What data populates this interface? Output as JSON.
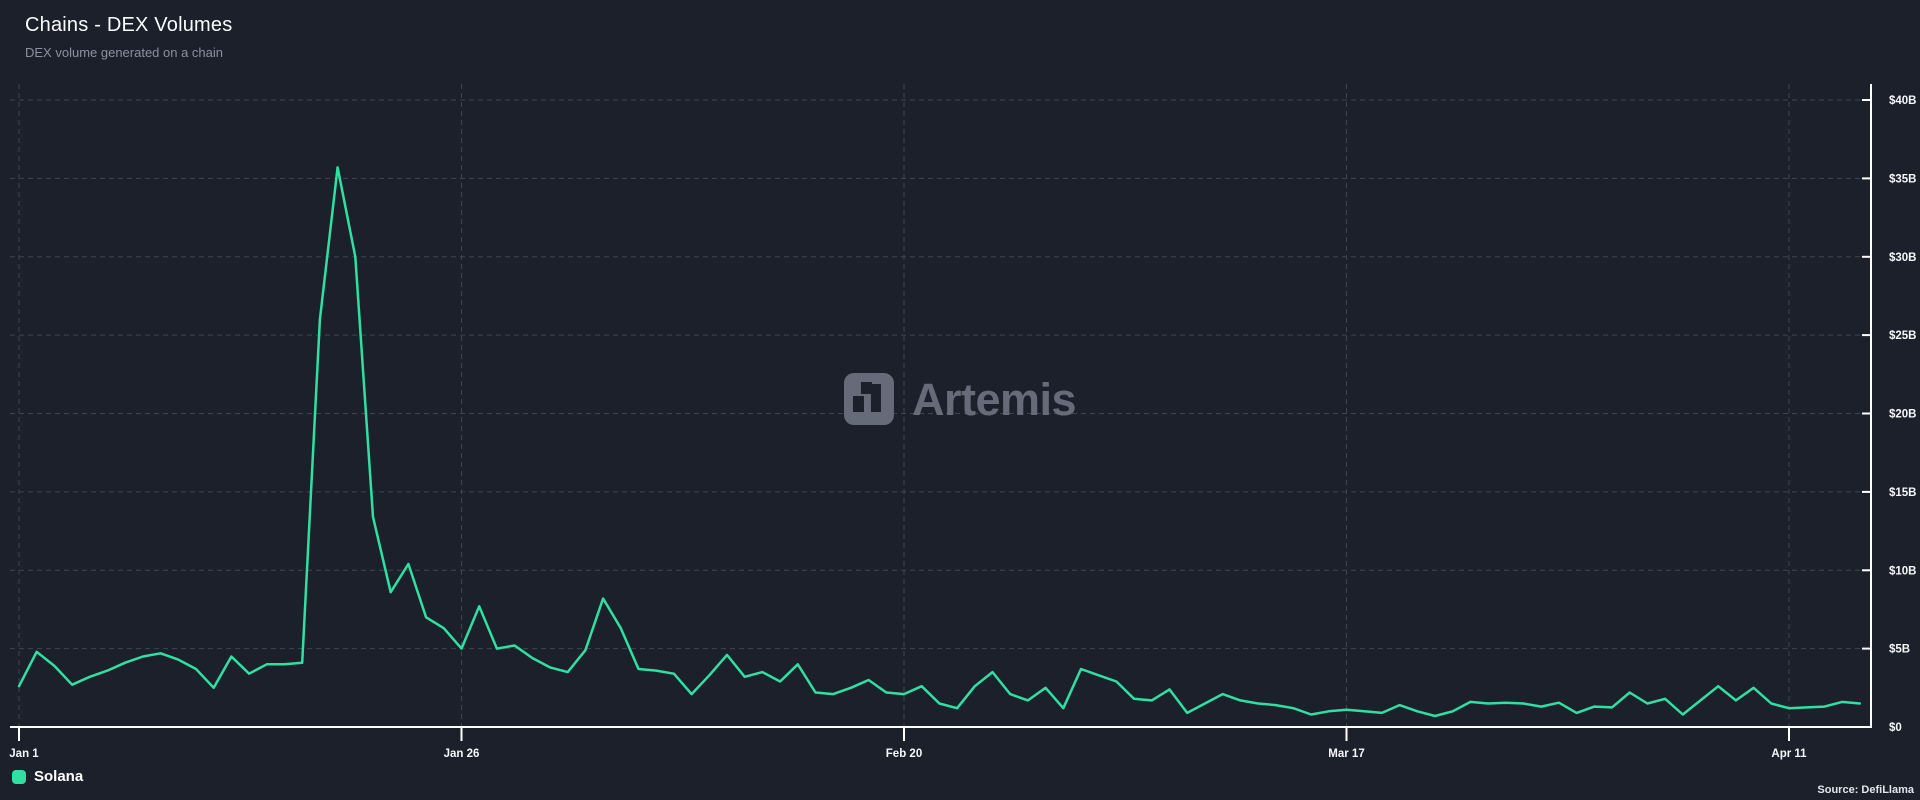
{
  "header": {
    "title": "Chains - DEX Volumes",
    "subtitle": "DEX volume generated on a chain"
  },
  "watermark": {
    "text": "Artemis"
  },
  "legend": [
    {
      "label": "Solana",
      "color": "#2fe0a2"
    }
  ],
  "source": "Source: DefiLlama",
  "colors": {
    "background": "#1c202b",
    "series_green": "#2fe0a2",
    "gridline": "#3e4450",
    "axis": "#ffffff",
    "subtitle_gray": "#8b91a0",
    "watermark_gray": "#6a707e"
  },
  "chart_data": {
    "type": "line",
    "title": "Chains - DEX Volumes",
    "subtitle": "DEX volume generated on a chain",
    "ylabel": "",
    "xlabel": "",
    "unit": "USD billions (daily DEX volume)",
    "x_start": "Jan 1",
    "x_end": "Apr 15",
    "x_interval": "1 day",
    "x_tick_labels": [
      "Jan 1",
      "Jan 26",
      "Feb 20",
      "Mar 17",
      "Apr 11"
    ],
    "x_tick_day_indices": [
      0,
      25,
      50,
      75,
      100
    ],
    "y_tick_labels": [
      "$0",
      "$5B",
      "$10B",
      "$15B",
      "$20B",
      "$25B",
      "$30B",
      "$35B",
      "$40B"
    ],
    "y_tick_values": [
      0,
      5,
      10,
      15,
      20,
      25,
      30,
      35,
      40
    ],
    "ylim": [
      0,
      40
    ],
    "grid": true,
    "y_axis_side": "right",
    "legend_position": "bottom-left",
    "peak": {
      "date": "Jan 19",
      "value_billions": 35.7
    },
    "series": [
      {
        "name": "Solana",
        "color": "#2fe0a2",
        "values": [
          2.6,
          4.8,
          3.9,
          2.7,
          3.2,
          3.6,
          4.1,
          4.5,
          4.7,
          4.3,
          3.7,
          2.5,
          4.5,
          3.4,
          4.0,
          4.0,
          4.1,
          26.0,
          35.7,
          30.0,
          13.4,
          8.6,
          10.4,
          7.0,
          6.3,
          5.0,
          7.7,
          5.0,
          5.2,
          4.4,
          3.8,
          3.5,
          4.9,
          8.2,
          6.3,
          3.7,
          3.6,
          3.4,
          2.1,
          3.3,
          4.6,
          3.2,
          3.5,
          2.9,
          4.0,
          2.2,
          2.1,
          2.5,
          3.0,
          2.2,
          2.1,
          2.6,
          1.5,
          1.2,
          2.6,
          3.5,
          2.1,
          1.7,
          2.5,
          1.2,
          3.7,
          3.3,
          2.9,
          1.8,
          1.7,
          2.4,
          0.9,
          1.5,
          2.1,
          1.7,
          1.5,
          1.4,
          1.2,
          0.8,
          1.0,
          1.1,
          1.0,
          0.9,
          1.4,
          1.0,
          0.7,
          1.0,
          1.6,
          1.5,
          1.55,
          1.5,
          1.3,
          1.55,
          0.9,
          1.3,
          1.25,
          2.2,
          1.5,
          1.8,
          0.8,
          1.7,
          2.6,
          1.7,
          2.5,
          1.5,
          1.2,
          1.25,
          1.3,
          1.6,
          1.5
        ]
      }
    ]
  }
}
